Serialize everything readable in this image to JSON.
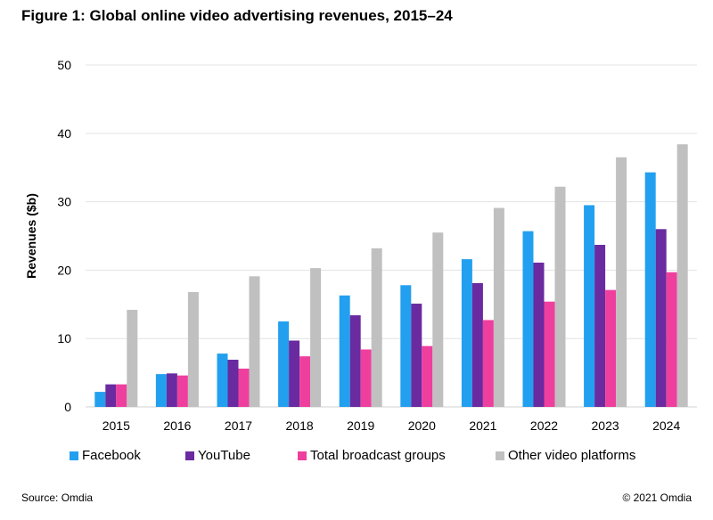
{
  "chart_data": {
    "type": "bar",
    "title": "Figure 1: Global online video advertising revenues, 2015–24",
    "xlabel": "",
    "ylabel": "Revenues ($b)",
    "ylim": [
      0,
      50
    ],
    "yticks": [
      0,
      10,
      20,
      30,
      40,
      50
    ],
    "grid": true,
    "legend_placement": "bottom",
    "categories": [
      "2015",
      "2016",
      "2017",
      "2018",
      "2019",
      "2020",
      "2021",
      "2022",
      "2023",
      "2024"
    ],
    "series": [
      {
        "name": "Facebook",
        "color": "#22a0ef",
        "values": [
          2.2,
          4.8,
          7.8,
          12.5,
          16.3,
          17.8,
          21.6,
          25.7,
          29.5,
          34.3
        ]
      },
      {
        "name": "YouTube",
        "color": "#6a2aa0",
        "values": [
          3.3,
          4.9,
          6.9,
          9.7,
          13.4,
          15.1,
          18.1,
          21.1,
          23.7,
          26.0
        ]
      },
      {
        "name": "Total broadcast groups",
        "color": "#ef3f9e",
        "values": [
          3.3,
          4.6,
          5.6,
          7.4,
          8.4,
          8.9,
          12.7,
          15.4,
          17.1,
          19.7
        ]
      },
      {
        "name": "Other video platforms",
        "color": "#c0c0c0",
        "values": [
          14.2,
          16.8,
          19.1,
          20.3,
          23.2,
          25.5,
          29.1,
          32.2,
          36.5,
          38.4
        ]
      }
    ]
  },
  "footer": {
    "source": "Source: Omdia",
    "copyright": "© 2021 Omdia"
  }
}
